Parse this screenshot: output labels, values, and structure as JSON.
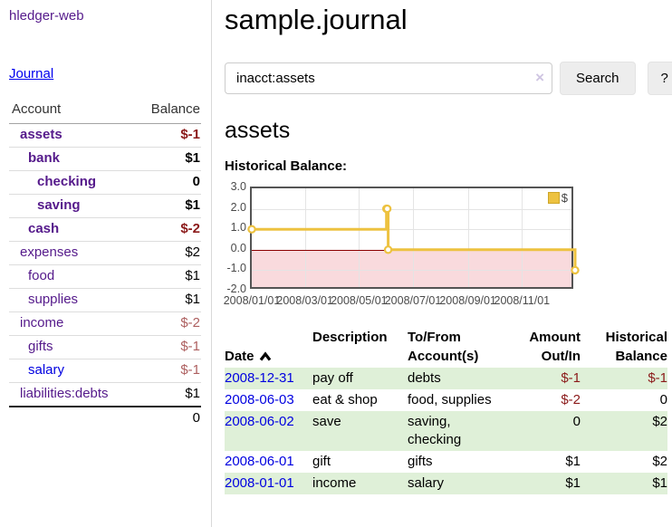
{
  "colors": {
    "link-purple": "#551a8b",
    "link-blue": "#0000e0",
    "neg-strong": "#8b1a1a",
    "neg-muted": "#ad5f5f",
    "row-green": "#dff0d8",
    "neg-fill": "#f9dadd",
    "zero-line": "#8b0000"
  },
  "app": {
    "title": "hledger-web"
  },
  "sidebar": {
    "journal_label": "Journal",
    "accounts_table": {
      "account_header": "Account",
      "balance_header": "Balance",
      "rows": [
        {
          "name": "assets",
          "balance": "$-1",
          "depth": 1,
          "bold": true,
          "balance_style": "neg-strong"
        },
        {
          "name": "bank",
          "balance": "$1",
          "depth": 2,
          "bold": true,
          "balance_style": "pos"
        },
        {
          "name": "checking",
          "balance": "0",
          "depth": 3,
          "bold": true,
          "balance_style": "pos"
        },
        {
          "name": "saving",
          "balance": "$1",
          "depth": 3,
          "bold": true,
          "balance_style": "pos"
        },
        {
          "name": "cash",
          "balance": "$-2",
          "depth": 2,
          "bold": true,
          "balance_style": "neg-strong"
        },
        {
          "name": "expenses",
          "balance": "$2",
          "depth": 1,
          "bold": false,
          "balance_style": "pos"
        },
        {
          "name": "food",
          "balance": "$1",
          "depth": 2,
          "bold": false,
          "balance_style": "pos"
        },
        {
          "name": "supplies",
          "balance": "$1",
          "depth": 2,
          "bold": false,
          "balance_style": "pos"
        },
        {
          "name": "income",
          "balance": "$-2",
          "depth": 1,
          "bold": false,
          "balance_style": "neg-muted"
        },
        {
          "name": "gifts",
          "balance": "$-1",
          "depth": 2,
          "bold": false,
          "balance_style": "neg-muted"
        },
        {
          "name": "salary",
          "balance": "$-1",
          "depth": 2,
          "bold": false,
          "balance_style": "neg-muted",
          "link_color": "blue"
        },
        {
          "name": "liabilities:debts",
          "balance": "$1",
          "depth": 1,
          "bold": false,
          "balance_style": "pos"
        }
      ],
      "total": "0"
    }
  },
  "header": {
    "title": "sample.journal"
  },
  "search": {
    "query": "inacct:assets",
    "clear_icon": "×",
    "button_label": "Search",
    "help_label": "?"
  },
  "account_page": {
    "heading": "assets",
    "chart_label": "Historical Balance:"
  },
  "chart_data": {
    "type": "line",
    "step": true,
    "title": "Historical Balance",
    "series": [
      {
        "name": "$",
        "color": "#EDC240",
        "points": [
          [
            "2008-01-01",
            1
          ],
          [
            "2008-06-01",
            2
          ],
          [
            "2008-06-02",
            2
          ],
          [
            "2008-06-03",
            0
          ],
          [
            "2008-12-31",
            -1
          ]
        ]
      }
    ],
    "x_range": [
      "2008-01-01",
      "2008-12-31"
    ],
    "ylim": [
      -2,
      3
    ],
    "yticks": [
      "3.0",
      "2.0",
      "1.0",
      "0.0",
      "-1.0",
      "-2.0"
    ],
    "xticks": [
      "2008/01/01",
      "2008/03/01",
      "2008/05/01",
      "2008/07/01",
      "2008/09/01",
      "2008/11/01"
    ],
    "grid": true,
    "legend_position": "top-right",
    "negative_region": true
  },
  "register_table": {
    "headers": {
      "date": "Date",
      "description": "Description",
      "accounts": "To/From\nAccount(s)",
      "amount": "Amount\nOut/In",
      "balance": "Historical\nBalance"
    },
    "rows": [
      {
        "date": "2008-12-31",
        "description": "pay off",
        "accounts": "debts",
        "amount": "$-1",
        "amount_neg": true,
        "balance": "$-1",
        "balance_neg": true
      },
      {
        "date": "2008-06-03",
        "description": "eat & shop",
        "accounts": "food, supplies",
        "amount": "$-2",
        "amount_neg": true,
        "balance": "0",
        "balance_neg": false
      },
      {
        "date": "2008-06-02",
        "description": "save",
        "accounts": "saving,\nchecking",
        "amount": "0",
        "amount_neg": false,
        "balance": "$2",
        "balance_neg": false
      },
      {
        "date": "2008-06-01",
        "description": "gift",
        "accounts": "gifts",
        "amount": "$1",
        "amount_neg": false,
        "balance": "$2",
        "balance_neg": false
      },
      {
        "date": "2008-01-01",
        "description": "income",
        "accounts": "salary",
        "amount": "$1",
        "amount_neg": false,
        "balance": "$1",
        "balance_neg": false
      }
    ]
  }
}
